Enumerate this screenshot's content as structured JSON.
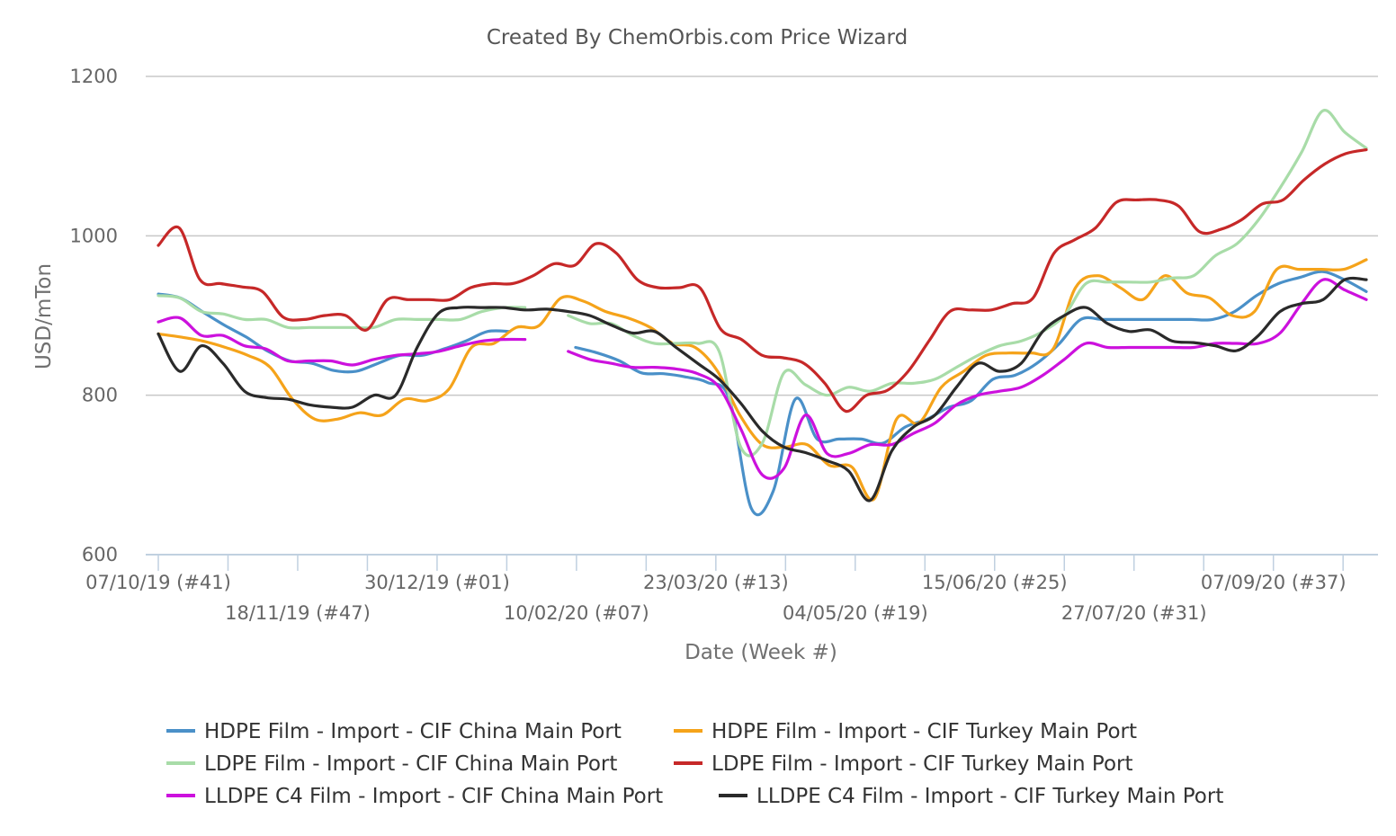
{
  "chart_data": {
    "type": "line",
    "title": "Created By ChemOrbis.com Price Wizard",
    "xlabel": "Date (Week #)",
    "ylabel": "USD/mTon",
    "ylim": [
      600,
      1200
    ],
    "yticks": [
      600,
      800,
      1000,
      1200
    ],
    "grid": true,
    "legend_position": "bottom",
    "weeks": 52,
    "x_tick_labels": [
      {
        "week": 0,
        "label": "07/10/19 (#41)"
      },
      {
        "week": 6,
        "label": "18/11/19 (#47)"
      },
      {
        "week": 12,
        "label": "30/12/19 (#01)"
      },
      {
        "week": 18,
        "label": "10/02/20 (#07)"
      },
      {
        "week": 24,
        "label": "23/03/20 (#13)"
      },
      {
        "week": 30,
        "label": "04/05/20 (#19)"
      },
      {
        "week": 36,
        "label": "15/06/20 (#25)"
      },
      {
        "week": 42,
        "label": "27/07/20 (#31)"
      },
      {
        "week": 48,
        "label": "07/09/20 (#37)"
      }
    ],
    "series": [
      {
        "name": "HDPE Film - Import - CIF China Main Port",
        "color": "#4a90c8",
        "values": [
          927,
          922,
          905,
          888,
          873,
          855,
          843,
          840,
          831,
          830,
          840,
          850,
          850,
          858,
          868,
          880,
          880,
          null,
          null,
          860,
          853,
          843,
          828,
          827,
          823,
          816,
          795,
          658,
          680,
          795,
          745,
          745,
          745,
          740,
          760,
          770,
          785,
          793,
          820,
          825,
          840,
          864,
          895,
          895,
          895,
          895,
          895,
          895,
          895,
          905,
          925,
          940,
          948,
          955,
          945,
          930
        ]
      },
      {
        "name": "HDPE Film - Import - CIF Turkey Main Port",
        "color": "#f5a31a",
        "values": [
          877,
          873,
          868,
          860,
          850,
          835,
          795,
          770,
          770,
          778,
          775,
          795,
          793,
          808,
          860,
          865,
          885,
          887,
          922,
          918,
          905,
          897,
          885,
          865,
          860,
          830,
          775,
          738,
          735,
          738,
          712,
          710,
          670,
          770,
          765,
          810,
          830,
          850,
          853,
          853,
          858,
          935,
          950,
          935,
          920,
          950,
          928,
          922,
          900,
          905,
          958,
          958,
          958,
          958,
          970
        ]
      },
      {
        "name": "LDPE Film - Import - CIF China Main Port",
        "color": "#a8dca8",
        "values": [
          925,
          922,
          905,
          902,
          895,
          895,
          885,
          885,
          885,
          885,
          885,
          895,
          895,
          895,
          895,
          905,
          910,
          910,
          null,
          900,
          890,
          890,
          875,
          865,
          865,
          865,
          855,
          735,
          740,
          828,
          813,
          800,
          810,
          805,
          815,
          815,
          820,
          835,
          850,
          862,
          868,
          880,
          900,
          940,
          942,
          942,
          942,
          947,
          950,
          975,
          990,
          1020,
          1060,
          1105,
          1157,
          1130,
          1110
        ]
      },
      {
        "name": "LDPE Film - Import - CIF Turkey Main Port",
        "color": "#c62828",
        "values": [
          988,
          1010,
          945,
          940,
          936,
          930,
          898,
          895,
          900,
          900,
          882,
          920,
          920,
          920,
          920,
          935,
          940,
          940,
          950,
          965,
          963,
          990,
          978,
          945,
          935,
          935,
          935,
          883,
          870,
          850,
          847,
          840,
          815,
          780,
          800,
          806,
          830,
          868,
          905,
          907,
          907,
          915,
          922,
          978,
          995,
          1010,
          1042,
          1045,
          1045,
          1037,
          1005,
          1008,
          1020,
          1040,
          1045,
          1070,
          1090,
          1103,
          1108
        ]
      },
      {
        "name": "LLDPE C4 Film - Import - CIF China Main Port",
        "color": "#cc11dd",
        "values": [
          892,
          897,
          875,
          875,
          862,
          858,
          843,
          843,
          843,
          838,
          845,
          850,
          852,
          855,
          862,
          868,
          870,
          870,
          null,
          855,
          845,
          840,
          835,
          835,
          833,
          827,
          810,
          758,
          700,
          708,
          775,
          727,
          727,
          738,
          738,
          752,
          765,
          788,
          800,
          805,
          810,
          825,
          845,
          865,
          860,
          860,
          860,
          860,
          860,
          865,
          865,
          865,
          878,
          915,
          945,
          932,
          920
        ]
      },
      {
        "name": "LLDPE C4 Film - Import - CIF Turkey Main Port",
        "color": "#2a2a2a",
        "values": [
          877,
          830,
          862,
          840,
          805,
          797,
          795,
          788,
          785,
          785,
          800,
          800,
          860,
          903,
          910,
          910,
          910,
          907,
          908,
          905,
          900,
          888,
          878,
          880,
          860,
          840,
          820,
          790,
          755,
          735,
          728,
          718,
          705,
          668,
          730,
          760,
          775,
          810,
          840,
          830,
          840,
          880,
          900,
          910,
          890,
          880,
          882,
          868,
          866,
          862,
          856,
          875,
          905,
          915,
          920,
          945,
          945
        ]
      }
    ]
  }
}
